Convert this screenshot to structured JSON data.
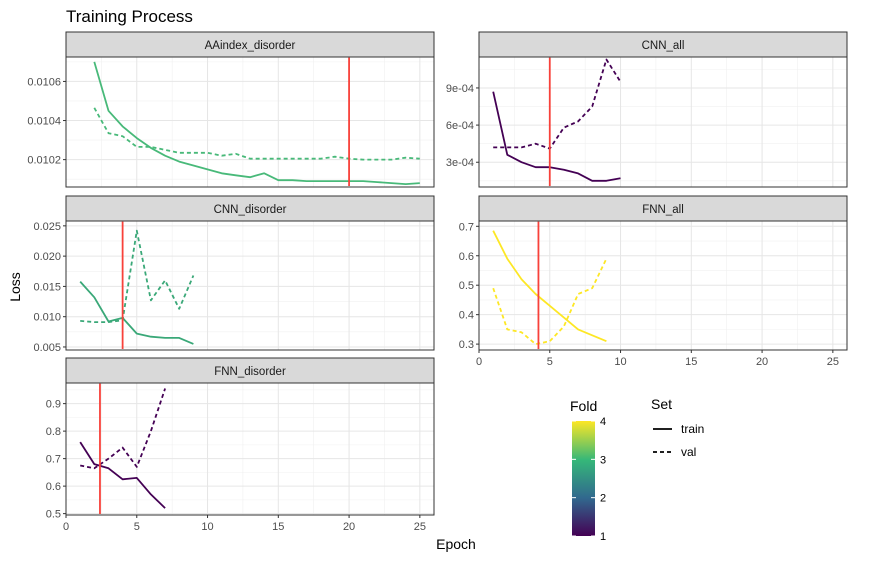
{
  "chart_data": {
    "type": "line",
    "title": "Training Process",
    "xlabel": "Epoch",
    "ylabel": "Loss",
    "xlim": [
      0,
      26
    ],
    "x_ticks": [
      0,
      5,
      10,
      15,
      20,
      25
    ],
    "grid": true,
    "legend": {
      "position": "bottom-right",
      "fold": {
        "title": "Fold",
        "ticks": [
          1,
          2,
          3,
          4
        ],
        "colors": [
          "#440154",
          "#31688e",
          "#35b779",
          "#fde725"
        ]
      },
      "set": {
        "title": "Set",
        "entries": [
          {
            "label": "train",
            "dash": "solid"
          },
          {
            "label": "val",
            "dash": "dashed"
          }
        ]
      }
    },
    "vline_color": "#f8413a",
    "panels": [
      {
        "name": "AAindex_disorder",
        "ylim": [
          0.01006,
          0.010725
        ],
        "y_ticks": [
          0.0102,
          0.0104,
          0.0106
        ],
        "y_tick_labels": [
          "0.0102",
          "0.0104",
          "0.0106"
        ],
        "fold": 3,
        "color": "#48b979",
        "vline": 20,
        "series": [
          {
            "name": "train",
            "x": [
              2,
              3,
              4,
              5,
              6,
              7,
              8,
              9,
              10,
              11,
              12,
              13,
              14,
              15,
              16,
              17,
              18,
              19,
              20,
              21,
              22,
              23,
              24,
              25
            ],
            "values": [
              0.0107,
              0.01045,
              0.01037,
              0.01031,
              0.01026,
              0.01022,
              0.01019,
              0.01017,
              0.01015,
              0.01013,
              0.01012,
              0.01011,
              0.01013,
              0.010095,
              0.010095,
              0.01009,
              0.01009,
              0.01009,
              0.01009,
              0.01009,
              0.010085,
              0.01008,
              0.010075,
              0.01008
            ]
          },
          {
            "name": "val",
            "x": [
              2,
              3,
              4,
              5,
              6,
              7,
              8,
              9,
              10,
              11,
              12,
              13,
              14,
              15,
              16,
              17,
              18,
              19,
              20,
              21,
              22,
              23,
              24,
              25
            ],
            "values": [
              0.010465,
              0.010335,
              0.01032,
              0.010265,
              0.010265,
              0.01025,
              0.010235,
              0.010235,
              0.010235,
              0.01022,
              0.01023,
              0.010205,
              0.010205,
              0.010205,
              0.010205,
              0.010205,
              0.010205,
              0.010215,
              0.010205,
              0.0102,
              0.0102,
              0.0102,
              0.01021,
              0.010205
            ]
          }
        ]
      },
      {
        "name": "CNN_all",
        "ylim": [
          0.0001,
          0.00115
        ],
        "y_ticks": [
          0.0003,
          0.0006,
          0.0009
        ],
        "y_tick_labels": [
          "3e-04",
          "6e-04",
          "9e-04"
        ],
        "fold": 1,
        "color": "#440154",
        "vline": 5,
        "series": [
          {
            "name": "train",
            "x": [
              1,
              2,
              3,
              4,
              5,
              6,
              7,
              8,
              9,
              10
            ],
            "values": [
              0.00087,
              0.00036,
              0.0003,
              0.00026,
              0.00026,
              0.00024,
              0.00021,
              0.00015,
              0.00015,
              0.00017
            ]
          },
          {
            "name": "val",
            "x": [
              1,
              2,
              3,
              4,
              5,
              6,
              7,
              8,
              9,
              10
            ],
            "values": [
              0.00042,
              0.00042,
              0.00042,
              0.00045,
              0.00041,
              0.00058,
              0.00063,
              0.00075,
              0.00113,
              0.00095
            ]
          }
        ]
      },
      {
        "name": "CNN_disorder",
        "ylim": [
          0.0045,
          0.0258
        ],
        "y_ticks": [
          0.005,
          0.01,
          0.015,
          0.02,
          0.025
        ],
        "y_tick_labels": [
          "0.005",
          "0.010",
          "0.015",
          "0.020",
          "0.025"
        ],
        "fold": 3,
        "color": "#3aa878",
        "vline": 4,
        "series": [
          {
            "name": "train",
            "x": [
              1,
              2,
              3,
              4,
              5,
              6,
              7,
              8,
              9
            ],
            "values": [
              0.0158,
              0.0132,
              0.0092,
              0.0098,
              0.0072,
              0.0067,
              0.0065,
              0.0065,
              0.0055
            ]
          },
          {
            "name": "val",
            "x": [
              1,
              2,
              3,
              4,
              5,
              6,
              7,
              8,
              9
            ],
            "values": [
              0.0093,
              0.0091,
              0.0091,
              0.0094,
              0.0242,
              0.0127,
              0.016,
              0.0113,
              0.0168
            ]
          }
        ]
      },
      {
        "name": "FNN_all",
        "ylim": [
          0.28,
          0.718
        ],
        "y_ticks": [
          0.3,
          0.4,
          0.5,
          0.6,
          0.7
        ],
        "y_tick_labels": [
          "0.3",
          "0.4",
          "0.5",
          "0.6",
          "0.7"
        ],
        "fold": 4,
        "color": "#fde725",
        "vline": 4.2,
        "series": [
          {
            "name": "train",
            "x": [
              1,
              2,
              3,
              4,
              5,
              6,
              7,
              8,
              9
            ],
            "values": [
              0.685,
              0.59,
              0.52,
              0.47,
              0.43,
              0.39,
              0.35,
              0.33,
              0.31
            ]
          },
          {
            "name": "val",
            "x": [
              1,
              2,
              3,
              4,
              5,
              6,
              7,
              8,
              9
            ],
            "values": [
              0.49,
              0.35,
              0.34,
              0.3,
              0.31,
              0.36,
              0.47,
              0.49,
              0.59
            ]
          }
        ]
      },
      {
        "name": "FNN_disorder",
        "ylim": [
          0.495,
          0.975
        ],
        "y_ticks": [
          0.5,
          0.6,
          0.7,
          0.8,
          0.9
        ],
        "y_tick_labels": [
          "0.5",
          "0.6",
          "0.7",
          "0.8",
          "0.9"
        ],
        "fold": 1,
        "color": "#440154",
        "vline": 2.4,
        "series": [
          {
            "name": "train",
            "x": [
              1,
              2,
              3,
              4,
              5,
              6,
              7
            ],
            "values": [
              0.76,
              0.68,
              0.665,
              0.625,
              0.63,
              0.57,
              0.52
            ]
          },
          {
            "name": "val",
            "x": [
              1,
              2,
              3,
              4,
              5,
              6,
              7
            ],
            "values": [
              0.675,
              0.665,
              0.7,
              0.74,
              0.67,
              0.8,
              0.955
            ]
          }
        ]
      }
    ]
  }
}
